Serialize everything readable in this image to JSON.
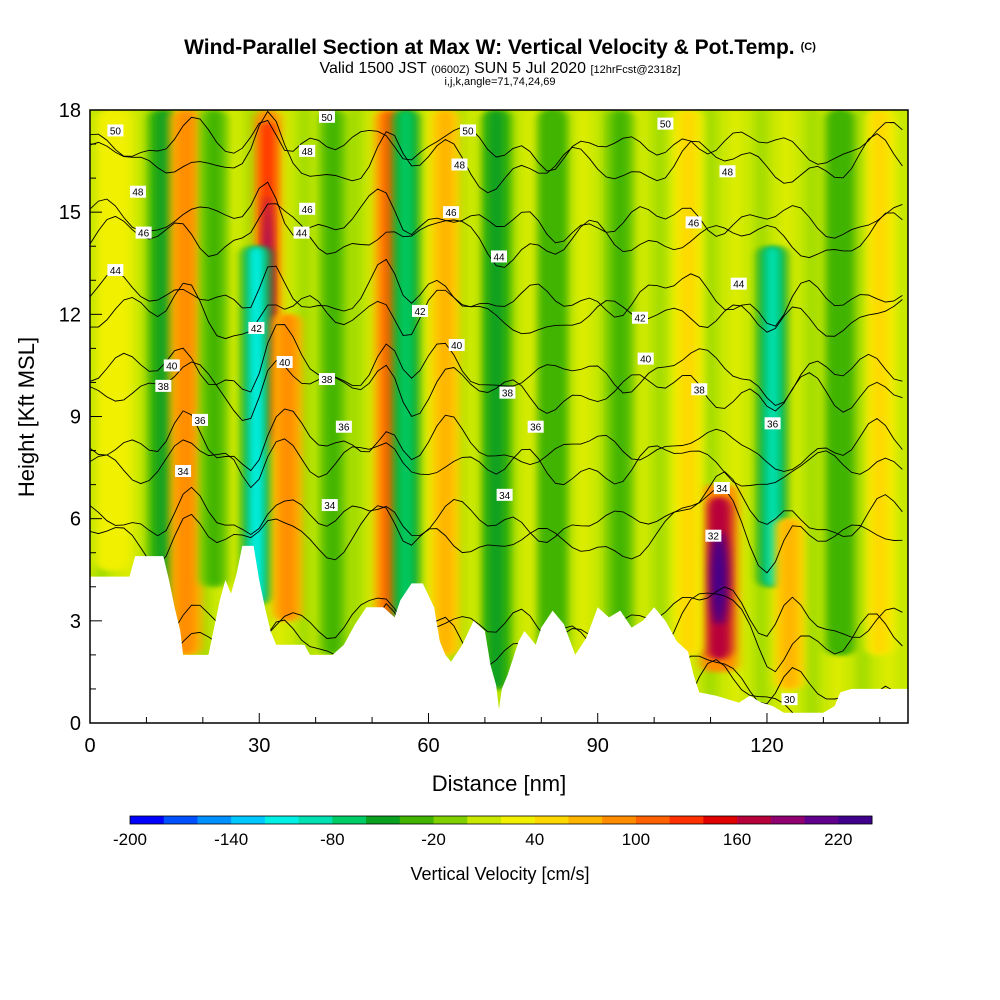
{
  "header": {
    "title": "Wind-Parallel Section at Max W: Vertical Velocity & Pot.Temp.",
    "title_mark": "(C)",
    "valid_prefix": "Valid 1500 JST",
    "valid_utc": "(0600Z)",
    "valid_date": "SUN 5 Jul 2020",
    "forecast": "[12hrFcst@2318z]",
    "indices": "i,j,k,angle=71,74,24,69"
  },
  "chart_data": {
    "type": "heatmap",
    "xlabel": "Distance [nm]",
    "ylabel": "Height [Kft MSL]",
    "xlim": [
      0,
      145
    ],
    "ylim": [
      0,
      18
    ],
    "xticks": [
      0,
      30,
      60,
      90,
      120
    ],
    "yticks": [
      0,
      3,
      6,
      9,
      12,
      15,
      18
    ],
    "colorbar": {
      "label": "Vertical Velocity [cm/s]",
      "range": [
        -200,
        240
      ],
      "step": 20,
      "tick_labels": [
        -200,
        -140,
        -80,
        -20,
        40,
        100,
        160,
        220
      ],
      "colors": [
        "#0000ff",
        "#0050ff",
        "#0090ff",
        "#00c8ff",
        "#00f0e6",
        "#00e0b0",
        "#00cc66",
        "#0aa020",
        "#40b400",
        "#80d000",
        "#c8e800",
        "#f0f000",
        "#ffd800",
        "#ffb400",
        "#ff8c00",
        "#ff6000",
        "#ff3000",
        "#e00000",
        "#b8003a",
        "#900070",
        "#60008c",
        "#40008c"
      ]
    },
    "vertical_velocity_features": [
      {
        "x": 4,
        "w": 4,
        "z_bottom": 4.5,
        "z_top": 18,
        "value": 40
      },
      {
        "x": 13,
        "w": 3,
        "z_bottom": 3,
        "z_top": 18,
        "value": -60
      },
      {
        "x": 17,
        "w": 3.5,
        "z_bottom": 2,
        "z_top": 18,
        "value": 120
      },
      {
        "x": 22,
        "w": 3,
        "z_bottom": 4,
        "z_top": 18,
        "value": -40
      },
      {
        "x": 31.5,
        "w": 2.5,
        "z_bottom": 8,
        "z_top": 18,
        "value": 180
      },
      {
        "x": 29.5,
        "w": 3,
        "z_bottom": 3.5,
        "z_top": 14,
        "value": -150
      },
      {
        "x": 35,
        "w": 3,
        "z_bottom": 3,
        "z_top": 12,
        "value": 120
      },
      {
        "x": 43,
        "w": 3,
        "z_bottom": 2,
        "z_top": 18,
        "value": -40
      },
      {
        "x": 53,
        "w": 3,
        "z_bottom": 3,
        "z_top": 18,
        "value": 140
      },
      {
        "x": 56,
        "w": 2.5,
        "z_bottom": 3,
        "z_top": 18,
        "value": -100
      },
      {
        "x": 63,
        "w": 3,
        "z_bottom": 2,
        "z_top": 18,
        "value": 80
      },
      {
        "x": 72,
        "w": 3,
        "z_bottom": 1,
        "z_top": 18,
        "value": -60
      },
      {
        "x": 82,
        "w": 3,
        "z_bottom": 2,
        "z_top": 18,
        "value": -50
      },
      {
        "x": 94,
        "w": 3,
        "z_bottom": 2,
        "z_top": 18,
        "value": -40
      },
      {
        "x": 111.5,
        "w": 4.5,
        "z_bottom": 1.5,
        "z_top": 7,
        "value": 230
      },
      {
        "x": 106,
        "w": 3,
        "z_bottom": 2,
        "z_top": 18,
        "value": 60
      },
      {
        "x": 121,
        "w": 3,
        "z_bottom": 4,
        "z_top": 14,
        "value": -130
      },
      {
        "x": 124,
        "w": 3,
        "z_bottom": 1,
        "z_top": 6,
        "value": 100
      },
      {
        "x": 133,
        "w": 3,
        "z_bottom": 2,
        "z_top": 18,
        "value": -50
      },
      {
        "x": 140,
        "w": 3,
        "z_bottom": 2,
        "z_top": 18,
        "value": 60
      }
    ],
    "terrain_top_kft": [
      [
        0,
        4.3
      ],
      [
        7,
        4.3
      ],
      [
        8,
        4.9
      ],
      [
        13,
        4.9
      ],
      [
        14,
        4.2
      ],
      [
        15,
        3.4
      ],
      [
        16,
        2.7
      ],
      [
        16.5,
        2.0
      ],
      [
        21,
        2.0
      ],
      [
        22,
        2.8
      ],
      [
        23,
        3.6
      ],
      [
        24,
        4.2
      ],
      [
        25,
        3.8
      ],
      [
        26,
        4.4
      ],
      [
        27,
        5.2
      ],
      [
        29,
        5.2
      ],
      [
        30,
        4.2
      ],
      [
        31,
        3.4
      ],
      [
        32,
        2.7
      ],
      [
        33,
        2.3
      ],
      [
        38,
        2.3
      ],
      [
        39,
        2.0
      ],
      [
        43,
        2.0
      ],
      [
        45,
        2.3
      ],
      [
        47,
        2.9
      ],
      [
        49,
        3.4
      ],
      [
        52,
        3.4
      ],
      [
        54,
        3.1
      ],
      [
        55,
        3.6
      ],
      [
        57,
        4.1
      ],
      [
        59,
        4.1
      ],
      [
        61,
        3.4
      ],
      [
        62,
        2.4
      ],
      [
        63,
        2.0
      ],
      [
        64,
        1.8
      ],
      [
        66,
        2.3
      ],
      [
        68,
        3.0
      ],
      [
        70,
        2.7
      ],
      [
        71,
        1.7
      ],
      [
        72,
        1.1
      ],
      [
        72.5,
        0.4
      ],
      [
        73,
        1.0
      ],
      [
        74,
        1.4
      ],
      [
        76,
        2.4
      ],
      [
        77,
        2.7
      ],
      [
        79,
        2.3
      ],
      [
        80,
        2.8
      ],
      [
        82,
        3.3
      ],
      [
        84,
        2.9
      ],
      [
        86,
        2.0
      ],
      [
        88,
        2.5
      ],
      [
        90,
        3.4
      ],
      [
        92,
        3.1
      ],
      [
        94,
        3.3
      ],
      [
        96,
        2.8
      ],
      [
        98,
        3.0
      ],
      [
        100,
        3.4
      ],
      [
        102,
        3.0
      ],
      [
        104,
        2.4
      ],
      [
        106,
        2.1
      ],
      [
        107,
        1.4
      ],
      [
        108,
        0.9
      ],
      [
        111,
        0.8
      ],
      [
        115,
        0.6
      ],
      [
        117,
        0.8
      ],
      [
        119,
        0.6
      ],
      [
        121,
        0.5
      ],
      [
        123,
        0.3
      ],
      [
        130,
        0.3
      ],
      [
        132,
        0.5
      ],
      [
        133,
        0.9
      ],
      [
        135,
        1.0
      ],
      [
        144,
        1.0
      ],
      [
        145,
        1.0
      ]
    ],
    "theta_contour_levels": [
      30,
      32,
      34,
      36,
      38,
      40,
      42,
      44,
      46,
      48,
      50
    ],
    "theta_labels": [
      {
        "x": 4.5,
        "z": 17.4,
        "text": "50"
      },
      {
        "x": 42,
        "z": 17.8,
        "text": "50"
      },
      {
        "x": 67,
        "z": 17.4,
        "text": "50"
      },
      {
        "x": 102,
        "z": 17.6,
        "text": "50"
      },
      {
        "x": 8.5,
        "z": 15.6,
        "text": "48"
      },
      {
        "x": 38.5,
        "z": 16.8,
        "text": "48"
      },
      {
        "x": 65.5,
        "z": 16.4,
        "text": "48"
      },
      {
        "x": 113,
        "z": 16.2,
        "text": "48"
      },
      {
        "x": 9.5,
        "z": 14.4,
        "text": "46"
      },
      {
        "x": 38.5,
        "z": 15.1,
        "text": "46"
      },
      {
        "x": 64,
        "z": 15.0,
        "text": "46"
      },
      {
        "x": 107,
        "z": 14.7,
        "text": "46"
      },
      {
        "x": 4.5,
        "z": 13.3,
        "text": "44"
      },
      {
        "x": 37.5,
        "z": 14.4,
        "text": "44"
      },
      {
        "x": 72.5,
        "z": 13.7,
        "text": "44"
      },
      {
        "x": 115,
        "z": 12.9,
        "text": "44"
      },
      {
        "x": 29.5,
        "z": 11.6,
        "text": "42"
      },
      {
        "x": 58.5,
        "z": 12.1,
        "text": "42"
      },
      {
        "x": 97.5,
        "z": 11.9,
        "text": "42"
      },
      {
        "x": 14.5,
        "z": 10.5,
        "text": "40"
      },
      {
        "x": 34.5,
        "z": 10.6,
        "text": "40"
      },
      {
        "x": 65,
        "z": 11.1,
        "text": "40"
      },
      {
        "x": 98.5,
        "z": 10.7,
        "text": "40"
      },
      {
        "x": 13,
        "z": 9.9,
        "text": "38"
      },
      {
        "x": 42,
        "z": 10.1,
        "text": "38"
      },
      {
        "x": 74,
        "z": 9.7,
        "text": "38"
      },
      {
        "x": 108,
        "z": 9.8,
        "text": "38"
      },
      {
        "x": 19.5,
        "z": 8.9,
        "text": "36"
      },
      {
        "x": 45,
        "z": 8.7,
        "text": "36"
      },
      {
        "x": 79,
        "z": 8.7,
        "text": "36"
      },
      {
        "x": 121,
        "z": 8.8,
        "text": "36"
      },
      {
        "x": 16.5,
        "z": 7.4,
        "text": "34"
      },
      {
        "x": 42.5,
        "z": 6.4,
        "text": "34"
      },
      {
        "x": 73.5,
        "z": 6.7,
        "text": "34"
      },
      {
        "x": 112,
        "z": 6.9,
        "text": "34"
      },
      {
        "x": 110.5,
        "z": 5.5,
        "text": "32"
      },
      {
        "x": 124,
        "z": 0.7,
        "text": "30"
      }
    ]
  }
}
